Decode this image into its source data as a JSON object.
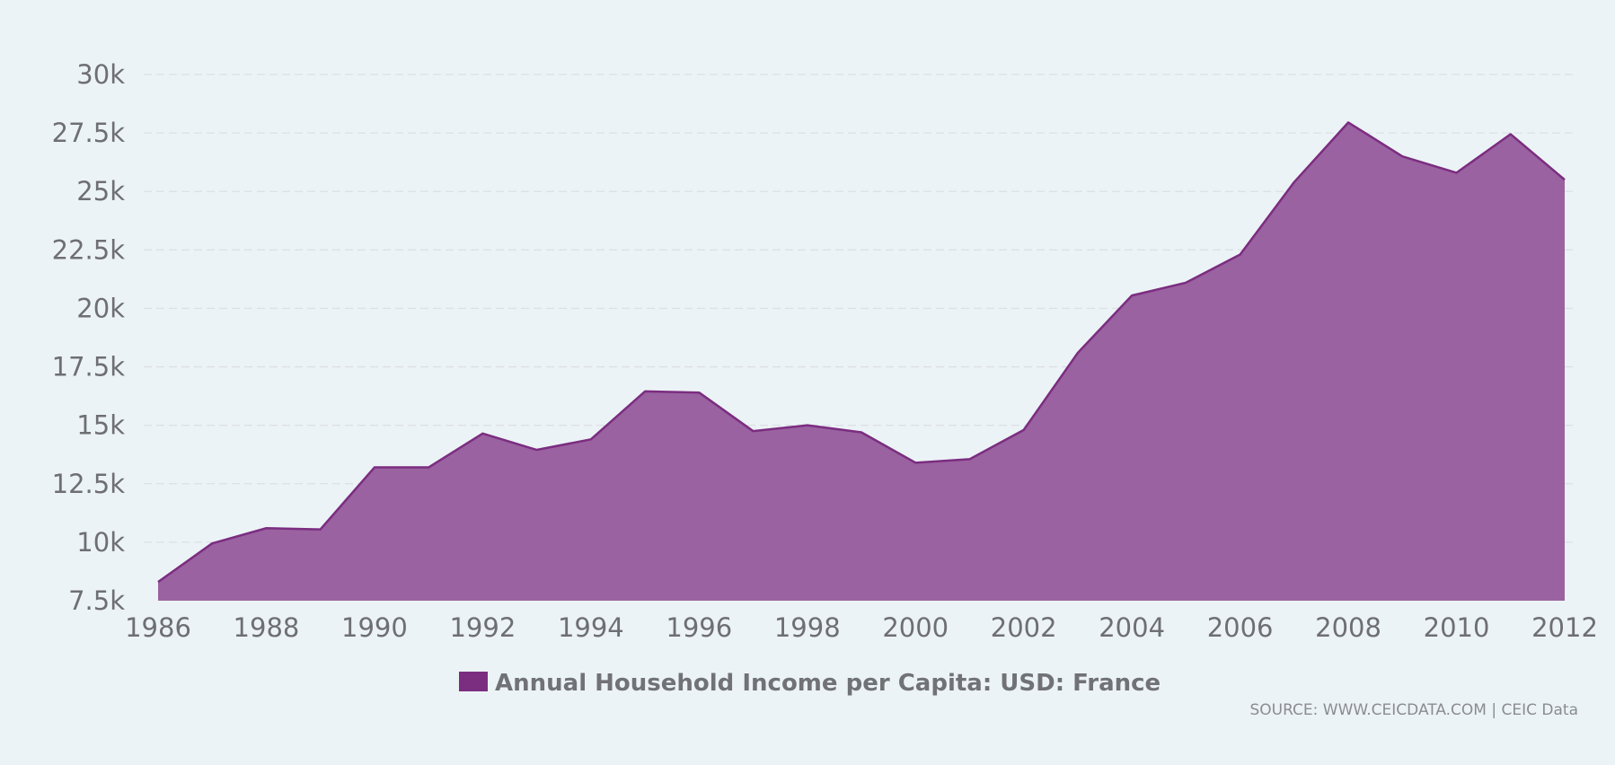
{
  "colors": {
    "background": "#ecf3f6",
    "area_fill": "#9a62a0",
    "area_line": "#7b2d80",
    "legend_swatch": "#7b2d80",
    "grid": "#dbe0e6",
    "tick_text": "#6e6f73"
  },
  "source": "SOURCE: WWW.CEICDATA.COM | CEIC Data",
  "chart_data": {
    "type": "area",
    "title": "",
    "xlabel": "",
    "ylabel": "",
    "x": [
      1986,
      1987,
      1988,
      1989,
      1990,
      1991,
      1992,
      1993,
      1994,
      1995,
      1996,
      1997,
      1998,
      1999,
      2000,
      2001,
      2002,
      2003,
      2004,
      2005,
      2006,
      2007,
      2008,
      2009,
      2010,
      2011,
      2012
    ],
    "series": [
      {
        "name": "Annual Household Income per Capita: USD: France",
        "values": [
          8300,
          9950,
          10600,
          10550,
          13200,
          13200,
          14650,
          13950,
          14400,
          16450,
          16400,
          14750,
          15000,
          14700,
          13400,
          13550,
          14800,
          18100,
          20550,
          21100,
          22300,
          25400,
          27950,
          26500,
          25800,
          27450,
          25500
        ]
      }
    ],
    "ylim": [
      7500,
      30000
    ],
    "y_ticks": [
      7500,
      10000,
      12500,
      15000,
      17500,
      20000,
      22500,
      25000,
      27500,
      30000
    ],
    "y_tick_labels": [
      "7.5k",
      "10k",
      "12.5k",
      "15k",
      "17.5k",
      "20k",
      "22.5k",
      "25k",
      "27.5k",
      "30k"
    ],
    "x_ticks": [
      1986,
      1988,
      1990,
      1992,
      1994,
      1996,
      1998,
      2000,
      2002,
      2004,
      2006,
      2008,
      2010,
      2012
    ],
    "x_tick_labels": [
      "1986",
      "1988",
      "1990",
      "1992",
      "1994",
      "1996",
      "1998",
      "2000",
      "2002",
      "2004",
      "2006",
      "2008",
      "2010",
      "2012"
    ],
    "grid": true,
    "legend_position": "bottom"
  }
}
